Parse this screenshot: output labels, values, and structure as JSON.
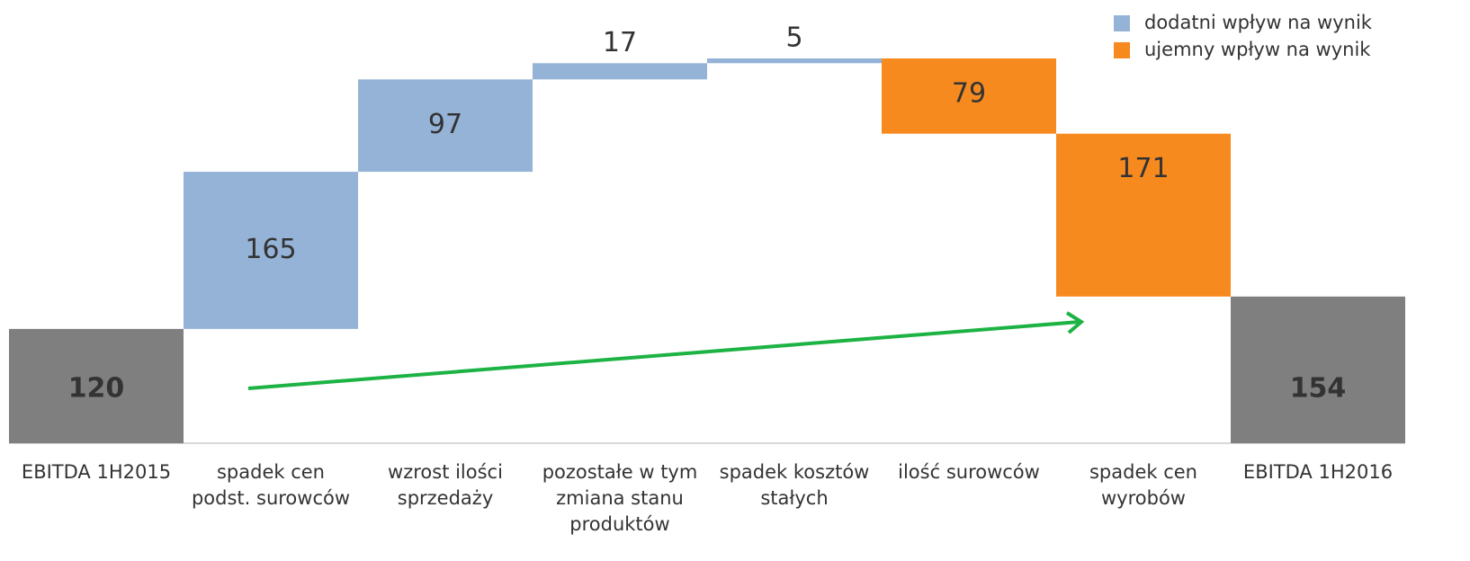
{
  "chart_data": {
    "type": "waterfall",
    "categories": [
      "EBITDA 1H2015",
      "spadek cen\npodst. surowców",
      "wzrost ilości\nsprzedaży",
      "pozostałe w tym\nzmiana stanu\nproduktów",
      "spadek kosztów\nstałych",
      "ilość surowców",
      "spadek cen\nwyrobów",
      "EBITDA 1H2016"
    ],
    "values": [
      120,
      165,
      97,
      17,
      5,
      -79,
      -171,
      154
    ],
    "value_labels": [
      "120",
      "165",
      "97",
      "17",
      "5",
      "79",
      "171",
      "154"
    ],
    "totals": [
      0,
      7
    ],
    "total_color": "#7f7f7f",
    "series": [
      {
        "name": "dodatni wpływ na wynik",
        "color": "#95b3d7"
      },
      {
        "name": "ujemny wpływ na wynik",
        "color": "#f68a1f"
      }
    ]
  }
}
